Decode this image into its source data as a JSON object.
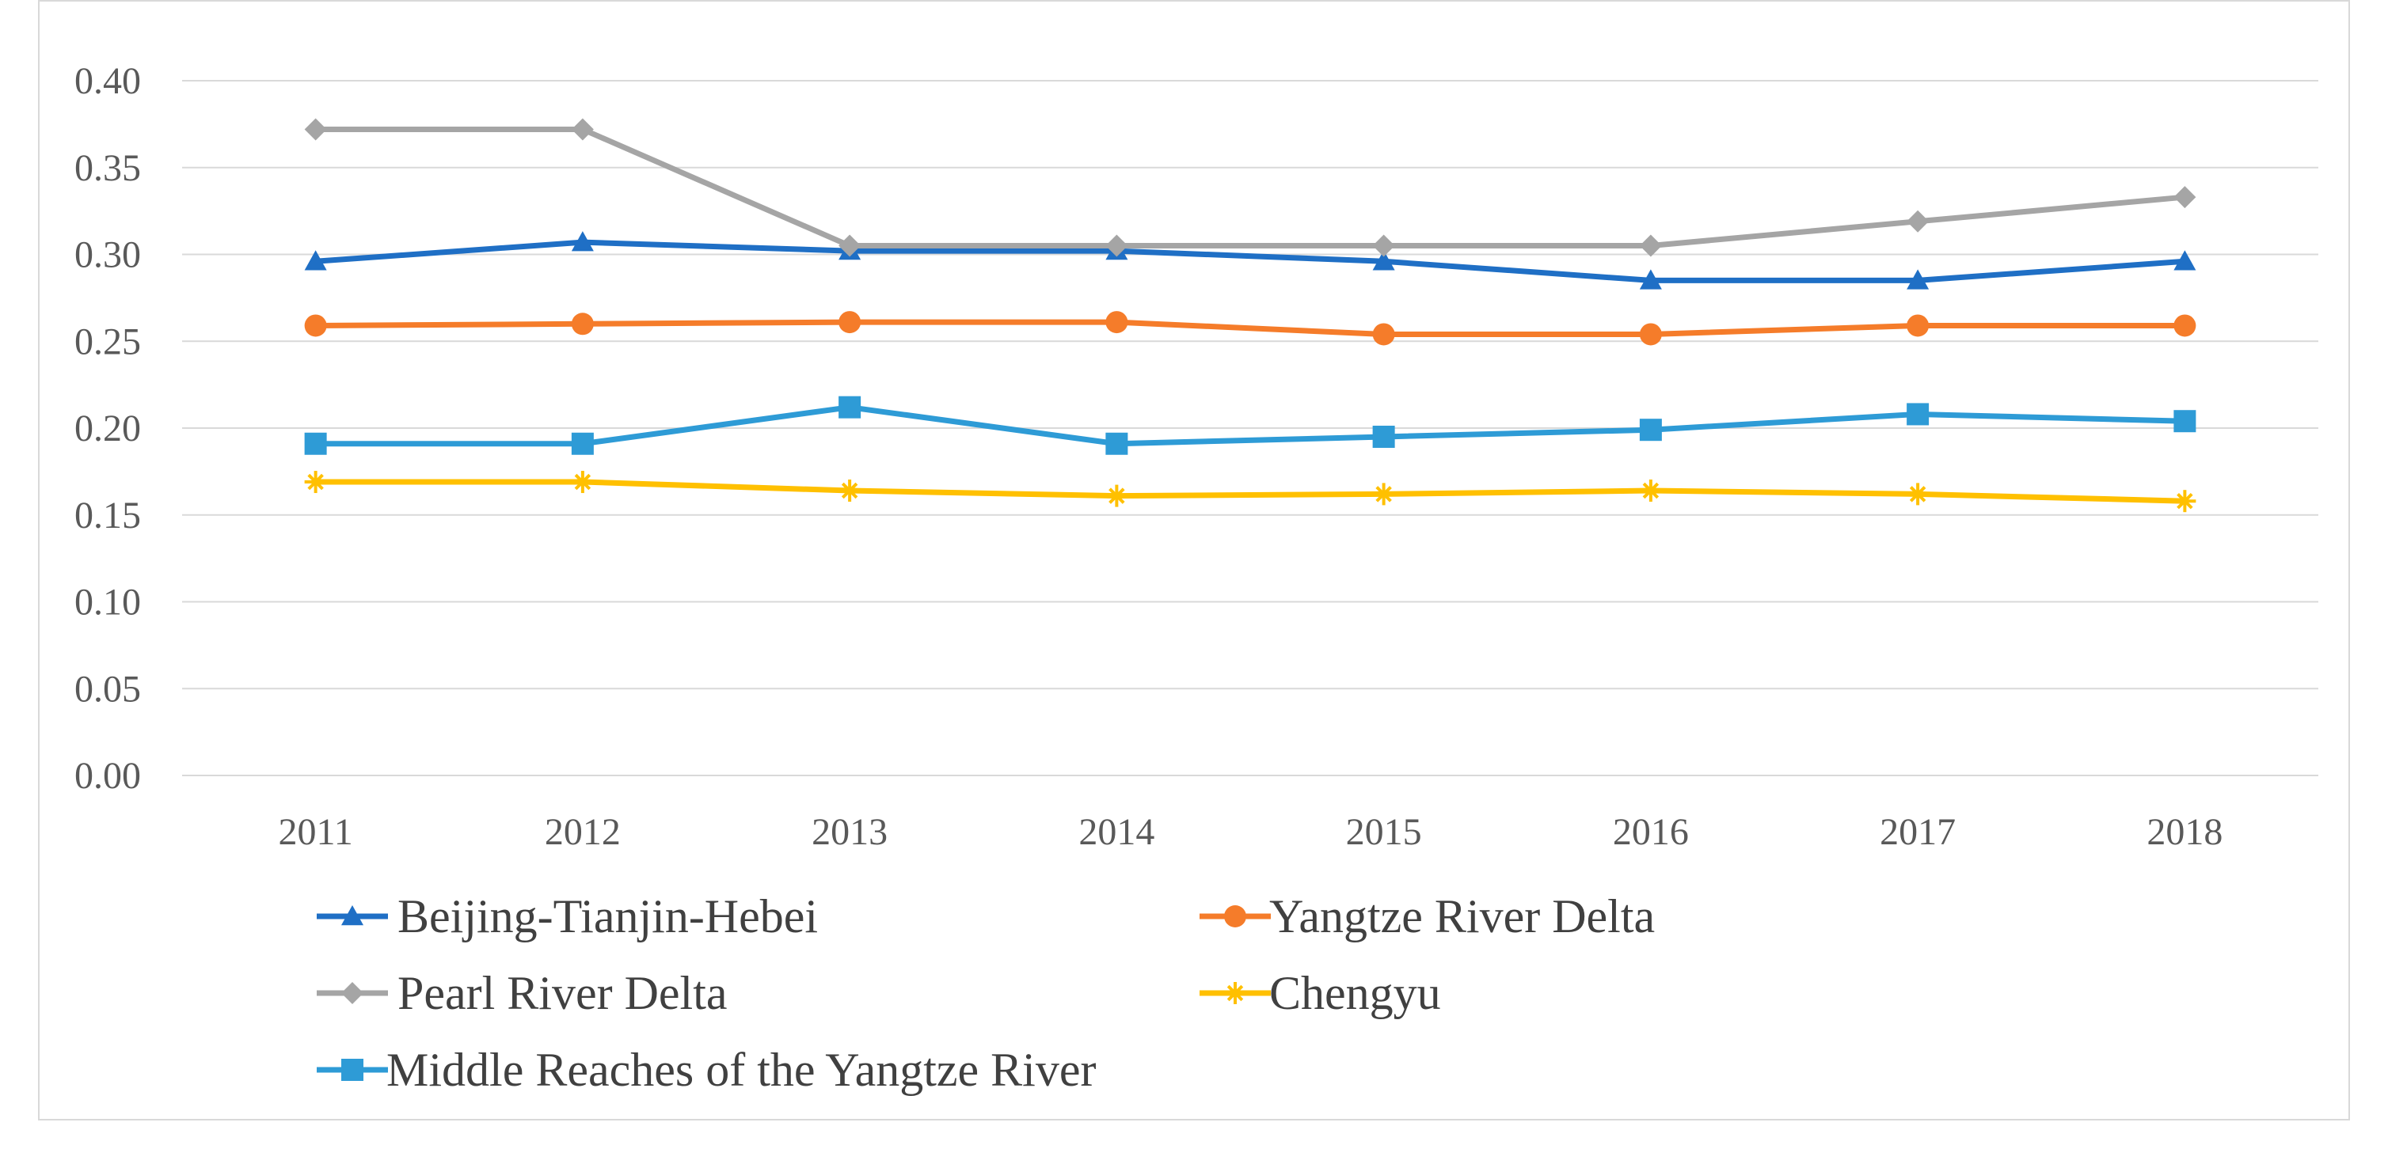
{
  "chart_data": {
    "type": "line",
    "title": "",
    "xlabel": "",
    "ylabel": "",
    "categories": [
      "2011",
      "2012",
      "2013",
      "2014",
      "2015",
      "2016",
      "2017",
      "2018"
    ],
    "ylim": [
      0,
      0.4
    ],
    "yticks": [
      "0.00",
      "0.05",
      "0.10",
      "0.15",
      "0.20",
      "0.25",
      "0.30",
      "0.35",
      "0.40"
    ],
    "grid": true,
    "legend_position": "bottom",
    "series": [
      {
        "name": "Beijing-Tianjin-Hebei",
        "color": "#1f6fc5",
        "marker": "triangle",
        "values": [
          0.296,
          0.307,
          0.302,
          0.302,
          0.296,
          0.285,
          0.285,
          0.296
        ]
      },
      {
        "name": "Yangtze River Delta",
        "color": "#f57c2a",
        "marker": "circle",
        "values": [
          0.259,
          0.26,
          0.261,
          0.261,
          0.254,
          0.254,
          0.259,
          0.259
        ]
      },
      {
        "name": "Pearl River Delta",
        "color": "#a5a5a5",
        "marker": "diamond",
        "values": [
          0.372,
          0.372,
          0.305,
          0.305,
          0.305,
          0.305,
          0.319,
          0.333
        ]
      },
      {
        "name": "Chengyu",
        "color": "#ffc000",
        "marker": "star",
        "values": [
          0.169,
          0.169,
          0.164,
          0.161,
          0.162,
          0.164,
          0.162,
          0.158
        ]
      },
      {
        "name": "Middle Reaches of the Yangtze River",
        "color": "#2e9bd6",
        "marker": "square",
        "values": [
          0.191,
          0.191,
          0.212,
          0.191,
          0.195,
          0.199,
          0.208,
          0.204
        ]
      }
    ]
  }
}
